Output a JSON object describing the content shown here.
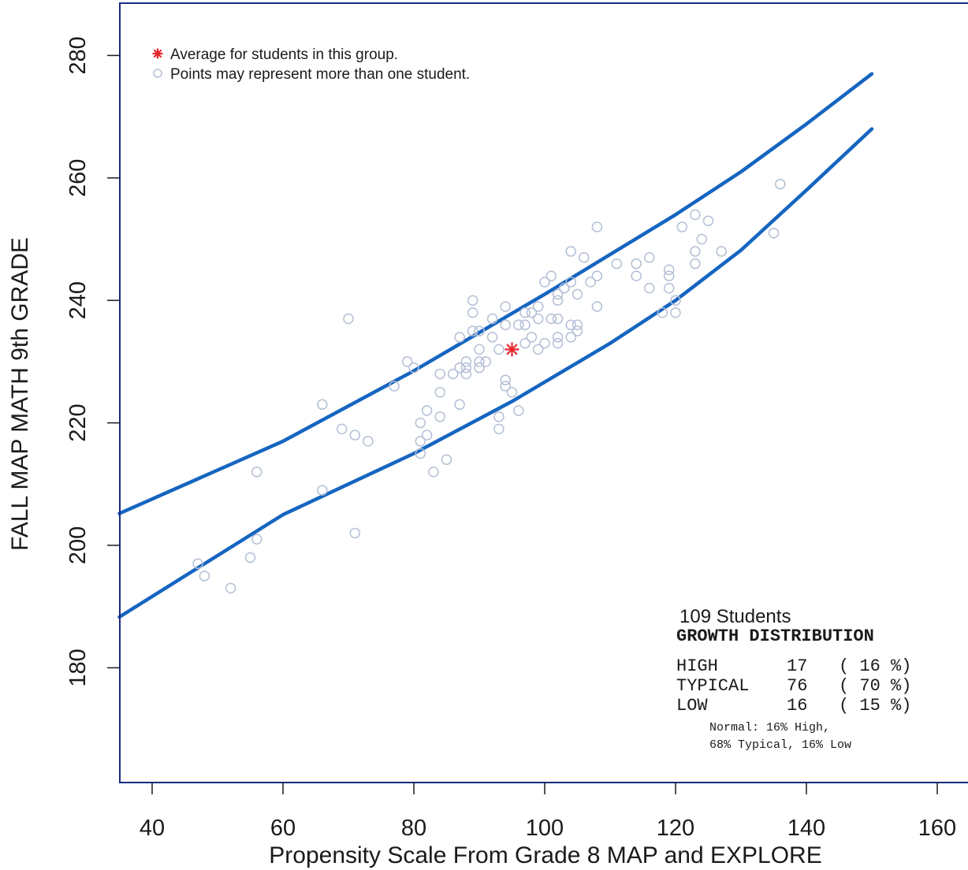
{
  "chart_data": {
    "type": "scatter",
    "title": "",
    "xlabel": "Propensity Scale From Grade 8 MAP and EXPLORE",
    "ylabel": "FALL MAP MATH 9th GRADE",
    "xlim": [
      35,
      160
    ],
    "ylim": [
      161,
      289
    ],
    "xticks": [
      40,
      60,
      80,
      100,
      120,
      140,
      160
    ],
    "yticks": [
      180,
      200,
      220,
      240,
      260,
      280
    ],
    "grid": false,
    "legend_position": "top-left",
    "colors": {
      "points": "#b4bfd6",
      "average": "#e8252c",
      "bands": "#1565c0",
      "frame": "#1a2a80"
    },
    "legend": [
      {
        "marker": "asterisk",
        "label": "Average for students in this group."
      },
      {
        "marker": "circle",
        "label": "Points may represent more than one student."
      }
    ],
    "series": [
      {
        "name": "Points may represent more than one student.",
        "type": "scatter",
        "points": [
          [
            47,
            197
          ],
          [
            48,
            195
          ],
          [
            52,
            193
          ],
          [
            55,
            198
          ],
          [
            56,
            201
          ],
          [
            56,
            212
          ],
          [
            66,
            209
          ],
          [
            66,
            223
          ],
          [
            69,
            219
          ],
          [
            70,
            237
          ],
          [
            71,
            218
          ],
          [
            71,
            202
          ],
          [
            73,
            217
          ],
          [
            77,
            226
          ],
          [
            79,
            230
          ],
          [
            80,
            229
          ],
          [
            81,
            220
          ],
          [
            81,
            217
          ],
          [
            81,
            215
          ],
          [
            82,
            222
          ],
          [
            82,
            218
          ],
          [
            83,
            212
          ],
          [
            84,
            225
          ],
          [
            84,
            221
          ],
          [
            84,
            228
          ],
          [
            85,
            214
          ],
          [
            86,
            228
          ],
          [
            87,
            234
          ],
          [
            87,
            229
          ],
          [
            87,
            223
          ],
          [
            88,
            230
          ],
          [
            88,
            229
          ],
          [
            88,
            228
          ],
          [
            89,
            240
          ],
          [
            89,
            238
          ],
          [
            89,
            235
          ],
          [
            90,
            235
          ],
          [
            90,
            232
          ],
          [
            90,
            230
          ],
          [
            90,
            229
          ],
          [
            91,
            230
          ],
          [
            92,
            237
          ],
          [
            92,
            234
          ],
          [
            93,
            232
          ],
          [
            93,
            221
          ],
          [
            93,
            219
          ],
          [
            94,
            239
          ],
          [
            94,
            236
          ],
          [
            94,
            227
          ],
          [
            94,
            226
          ],
          [
            95,
            225
          ],
          [
            96,
            236
          ],
          [
            96,
            222
          ],
          [
            97,
            238
          ],
          [
            97,
            236
          ],
          [
            97,
            233
          ],
          [
            98,
            234
          ],
          [
            98,
            238
          ],
          [
            99,
            239
          ],
          [
            99,
            237
          ],
          [
            99,
            232
          ],
          [
            100,
            243
          ],
          [
            100,
            233
          ],
          [
            101,
            244
          ],
          [
            101,
            237
          ],
          [
            102,
            241
          ],
          [
            102,
            240
          ],
          [
            102,
            237
          ],
          [
            102,
            234
          ],
          [
            102,
            233
          ],
          [
            103,
            242
          ],
          [
            104,
            248
          ],
          [
            104,
            243
          ],
          [
            104,
            236
          ],
          [
            104,
            234
          ],
          [
            105,
            241
          ],
          [
            105,
            236
          ],
          [
            105,
            235
          ],
          [
            106,
            247
          ],
          [
            107,
            243
          ],
          [
            108,
            252
          ],
          [
            108,
            244
          ],
          [
            108,
            239
          ],
          [
            111,
            246
          ],
          [
            114,
            246
          ],
          [
            114,
            244
          ],
          [
            116,
            247
          ],
          [
            116,
            242
          ],
          [
            118,
            238
          ],
          [
            119,
            245
          ],
          [
            119,
            244
          ],
          [
            119,
            242
          ],
          [
            120,
            240
          ],
          [
            120,
            238
          ],
          [
            121,
            252
          ],
          [
            123,
            254
          ],
          [
            123,
            248
          ],
          [
            123,
            246
          ],
          [
            124,
            250
          ],
          [
            125,
            253
          ],
          [
            127,
            248
          ],
          [
            135,
            251
          ],
          [
            136,
            259
          ]
        ]
      },
      {
        "name": "Average for students in this group.",
        "type": "scatter",
        "points": [
          [
            95,
            232
          ]
        ]
      },
      {
        "name": "upper band",
        "type": "line",
        "points": [
          [
            35,
            205.2
          ],
          [
            60,
            217.0
          ],
          [
            80,
            228.5
          ],
          [
            100,
            241.0
          ],
          [
            120,
            254.0
          ],
          [
            130,
            261.0
          ],
          [
            140,
            268.8
          ],
          [
            150,
            277.0
          ]
        ]
      },
      {
        "name": "lower band",
        "type": "line",
        "points": [
          [
            35,
            188.3
          ],
          [
            60,
            205.0
          ],
          [
            80,
            215.0
          ],
          [
            95,
            223.5
          ],
          [
            110,
            233.0
          ],
          [
            120,
            240.0
          ],
          [
            130,
            248.2
          ],
          [
            140,
            258.0
          ],
          [
            150,
            268.0
          ]
        ]
      }
    ]
  },
  "summary": {
    "count_line": "109  Students",
    "heading": "GROWTH DISTRIBUTION",
    "rows": [
      {
        "label": "HIGH",
        "count": "17",
        "pct": "( 16 %)"
      },
      {
        "label": "TYPICAL",
        "count": "76",
        "pct": "( 70 %)"
      },
      {
        "label": "LOW",
        "count": "16",
        "pct": "( 15 %)"
      }
    ],
    "note_line1": "Normal: 16% High,",
    "note_line2": "68% Typical, 16% Low"
  }
}
